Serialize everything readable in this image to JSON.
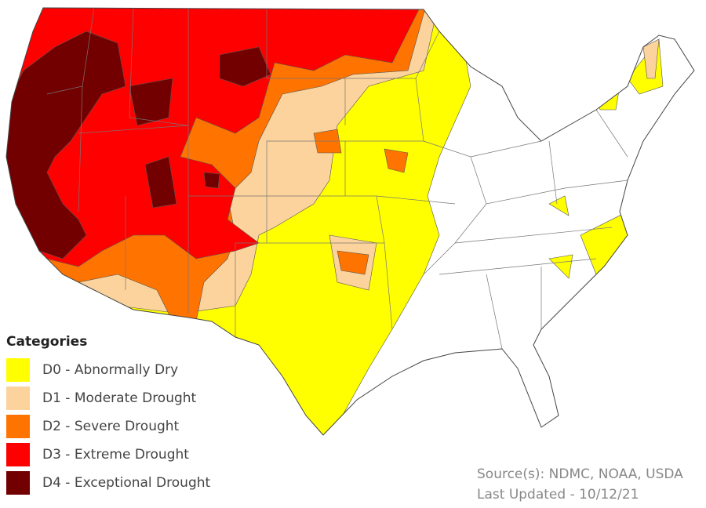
{
  "legend": {
    "title": "Categories",
    "items": [
      {
        "code": "D0",
        "label": "D0 - Abnormally Dry",
        "color": "#ffff00"
      },
      {
        "code": "D1",
        "label": "D1 - Moderate Drought",
        "color": "#fcd39c"
      },
      {
        "code": "D2",
        "label": "D2 - Severe Drought",
        "color": "#ff7300"
      },
      {
        "code": "D3",
        "label": "D3 - Extreme Drought",
        "color": "#ff0000"
      },
      {
        "code": "D4",
        "label": "D4 - Exceptional Drought",
        "color": "#730000"
      }
    ]
  },
  "source": "Source(s): NDMC, NOAA, USDA",
  "last_updated": "Last Updated - 10/12/21"
}
